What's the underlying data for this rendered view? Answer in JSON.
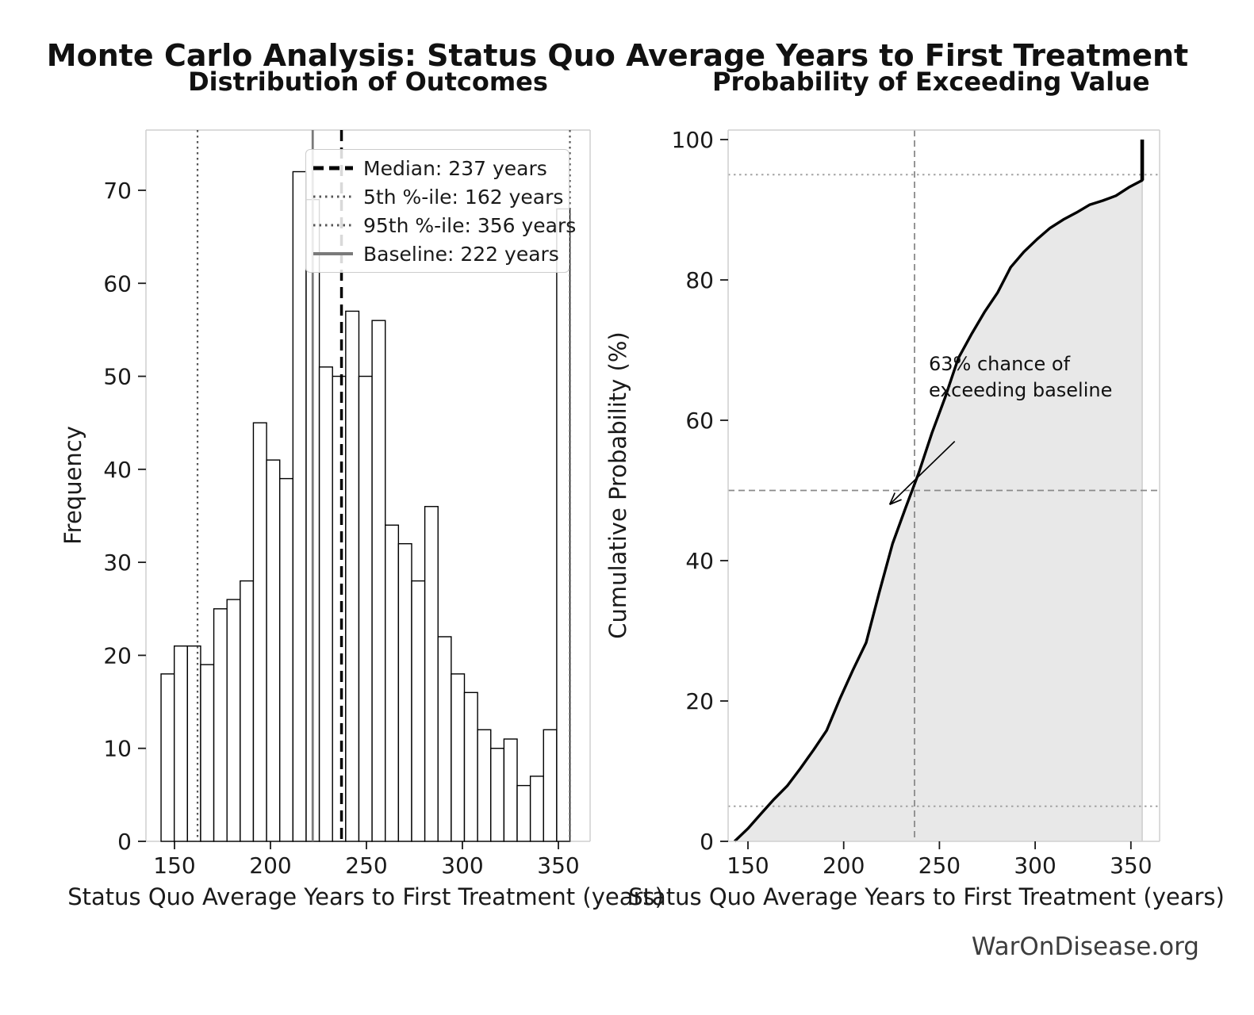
{
  "title": "Monte Carlo Analysis: Status Quo Average Years to First Treatment",
  "watermark": "WarOnDisease.org",
  "chart_data": [
    {
      "type": "bar",
      "name": "histogram",
      "title": "Distribution of Outcomes",
      "xlabel": "Status Quo Average Years to First Treatment (years)",
      "ylabel": "Frequency",
      "xlim": [
        135,
        366
      ],
      "ylim": [
        0,
        76.4
      ],
      "xticks": [
        150,
        200,
        250,
        300,
        350
      ],
      "yticks": [
        0,
        10,
        20,
        30,
        40,
        50,
        60,
        70
      ],
      "bin_start": 143,
      "bin_width": 6.871,
      "frequencies": [
        18,
        21,
        21,
        19,
        25,
        26,
        28,
        45,
        41,
        39,
        72,
        69,
        51,
        50,
        57,
        50,
        56,
        34,
        32,
        28,
        36,
        22,
        18,
        16,
        12,
        10,
        11,
        6,
        7,
        12,
        68
      ],
      "bar_fill": "#ffffff",
      "bar_edge": "#000000",
      "reference_lines": [
        {
          "label": "Median: 237 years",
          "x": 237,
          "style": "dashed",
          "color": "#000000",
          "width": 3.5
        },
        {
          "label": "5th %-ile: 162 years",
          "x": 162,
          "style": "dotted",
          "color": "#555555",
          "width": 2.2
        },
        {
          "label": "95th %-ile: 356 years",
          "x": 356,
          "style": "dotted",
          "color": "#555555",
          "width": 2.2
        },
        {
          "label": "Baseline: 222 years",
          "x": 222,
          "style": "solid",
          "color": "#7a7a7a",
          "width": 2.8
        }
      ]
    },
    {
      "type": "line",
      "name": "cdf",
      "title": "Probability of Exceeding Value",
      "xlabel": "Status Quo Average Years to First Treatment (years)",
      "ylabel": "Cumulative Probability (%)",
      "xlim": [
        139,
        366
      ],
      "ylim": [
        0,
        101
      ],
      "xticks": [
        150,
        200,
        250,
        300,
        350
      ],
      "yticks": [
        0,
        20,
        40,
        60,
        80,
        100
      ],
      "line_color": "#000000",
      "fill_color": "#e8e8e8",
      "fill_edge_color": "#c9c9c9",
      "points": [
        [
          143,
          0
        ],
        [
          149.9,
          1.8
        ],
        [
          156.7,
          3.9
        ],
        [
          163.6,
          6.0
        ],
        [
          170.5,
          7.9
        ],
        [
          177.4,
          10.4
        ],
        [
          184.2,
          13.0
        ],
        [
          191.1,
          15.8
        ],
        [
          198.0,
          20.3
        ],
        [
          204.8,
          24.4
        ],
        [
          211.7,
          28.3
        ],
        [
          218.6,
          35.5
        ],
        [
          225.5,
          42.4
        ],
        [
          232.3,
          47.5
        ],
        [
          239.2,
          52.5
        ],
        [
          246.1,
          58.2
        ],
        [
          252.9,
          63.2
        ],
        [
          259.8,
          68.8
        ],
        [
          266.6,
          72.2
        ],
        [
          273.5,
          75.4
        ],
        [
          280.4,
          78.2
        ],
        [
          287.2,
          81.8
        ],
        [
          294.1,
          84.0
        ],
        [
          301.0,
          85.8
        ],
        [
          307.8,
          87.4
        ],
        [
          314.7,
          88.6
        ],
        [
          321.6,
          89.6
        ],
        [
          328.4,
          90.7
        ],
        [
          335.3,
          91.3
        ],
        [
          342.2,
          92.0
        ],
        [
          349.0,
          93.2
        ],
        [
          355.9,
          94.2
        ],
        [
          355.9,
          100
        ]
      ],
      "h_lines": [
        {
          "y": 95,
          "style": "dotted",
          "color": "#a3a3a3",
          "width": 2.0
        },
        {
          "y": 50,
          "style": "dashed",
          "color": "#8a8a8a",
          "width": 1.8
        },
        {
          "y": 5,
          "style": "dotted",
          "color": "#a3a3a3",
          "width": 2.0
        }
      ],
      "v_lines": [
        {
          "x": 237,
          "style": "dashed",
          "color": "#8a8a8a",
          "width": 1.8
        }
      ],
      "annotation": {
        "lines": [
          "63% chance of",
          "exceeding baseline"
        ],
        "arrow_from": [
          258,
          57
        ],
        "arrow_to": [
          224,
          48
        ]
      }
    }
  ]
}
